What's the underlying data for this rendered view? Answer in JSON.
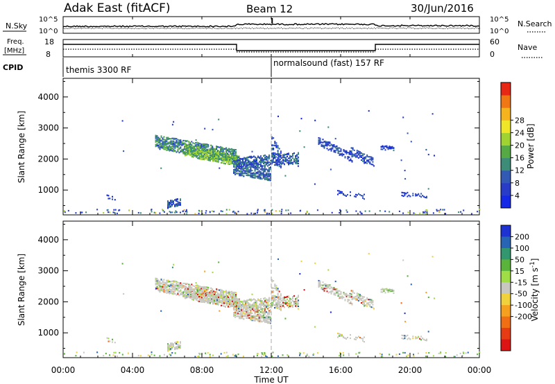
{
  "header": {
    "station": "Adak East (fitACF)",
    "beam": "Beam 12",
    "date": "30/Jun/2016"
  },
  "panels": {
    "nsky": {
      "left_label": "N.Sky",
      "right_label": "N.Search",
      "left_ticks": [
        "10^5",
        "10^0"
      ],
      "right_ticks": [
        "10^5",
        "10^0"
      ]
    },
    "freq": {
      "left_label_1": "Freq.",
      "left_label_2": "[MHz]",
      "right_label": "Nave",
      "left_ticks": [
        "18",
        "8"
      ],
      "right_ticks": [
        "60",
        "0"
      ]
    },
    "cpid": {
      "label": "CPID",
      "modes": [
        "themis 3300 RF",
        "normalsound (fast) 157 RF"
      ]
    }
  },
  "chart_data": [
    {
      "type": "heatmap",
      "name": "power",
      "ylabel": "Slant Range [km]",
      "xlabel": "Time UT",
      "yticks": [
        "1000",
        "2000",
        "3000",
        "4000"
      ],
      "ylim": [
        200,
        4600
      ],
      "xlim": [
        0,
        24
      ],
      "xticks": [
        "00:00",
        "04:00",
        "08:00",
        "12:00",
        "16:00",
        "20:00",
        "00:00"
      ],
      "colorbar": {
        "label": "Power [dB]",
        "ticks": [
          "4",
          "8",
          "12",
          "16",
          "20",
          "24",
          "28"
        ],
        "colors": [
          "#1428e6",
          "#283cc8",
          "#325ab4",
          "#3c8c78",
          "#55aa46",
          "#a0d232",
          "#f0e628",
          "#f5b41e",
          "#f07814",
          "#e62814"
        ]
      }
    },
    {
      "type": "heatmap",
      "name": "velocity",
      "ylabel": "Slant Range [km]",
      "xlabel": "Time UT",
      "yticks": [
        "1000",
        "2000",
        "3000",
        "4000"
      ],
      "ylim": [
        200,
        4600
      ],
      "xlim": [
        0,
        24
      ],
      "xticks": [
        "00:00",
        "04:00",
        "08:00",
        "12:00",
        "16:00",
        "20:00",
        "00:00"
      ],
      "colorbar": {
        "label": "Velocity [m s^-1]",
        "ticks": [
          "200",
          "100",
          "50",
          "15",
          "-15",
          "-50",
          "-100",
          "-200"
        ],
        "colors": [
          "#1e32d2",
          "#2864b4",
          "#32966e",
          "#5ab43c",
          "#a0dc46",
          "#c8c8c0",
          "#f0d23c",
          "#f5a01e",
          "#f06e14",
          "#e63c14",
          "#dc1414"
        ]
      }
    }
  ],
  "axis": {
    "xlabel": "Time UT"
  }
}
